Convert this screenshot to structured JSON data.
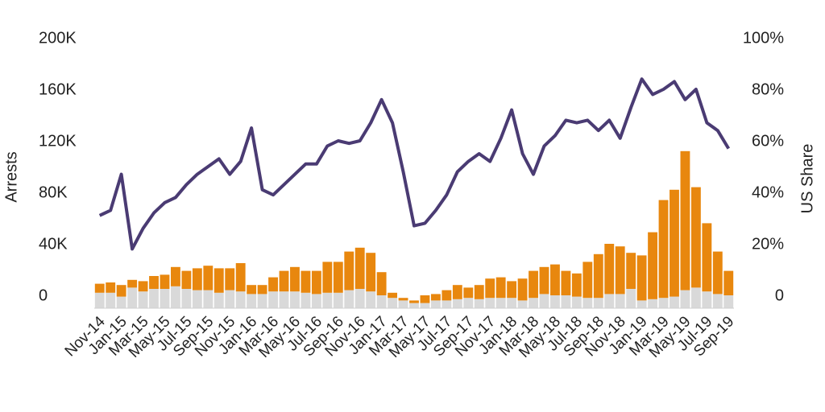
{
  "chart_data": {
    "type": "bar",
    "stacked": true,
    "y_label": "Arrests",
    "y2_label": "US Share",
    "categories": [
      "Nov-14",
      null,
      "Jan-15",
      null,
      "Mar-15",
      null,
      "May-15",
      null,
      "Jul-15",
      null,
      "Sep-15",
      null,
      "Nov-15",
      null,
      "Jan-16",
      null,
      "Mar-16",
      null,
      "May-16",
      null,
      "Jul-16",
      null,
      "Sep-16",
      null,
      "Nov-16",
      null,
      "Jan-17",
      null,
      "Mar-17",
      null,
      "May-17",
      null,
      "Jul-17",
      null,
      "Sep-17",
      null,
      "Nov-17",
      null,
      "Jan-18",
      null,
      "Mar-18",
      null,
      "May-18",
      null,
      "Jul-18",
      null,
      "Sep-18",
      null,
      "Nov-18",
      null,
      "Jan-19",
      null,
      "Mar-19",
      null,
      "May-19",
      null,
      "Jul-19",
      null,
      "Sep-19"
    ],
    "series": [
      {
        "type": "bar",
        "color": "#d9d9d9",
        "values": [
          12000,
          12000,
          9000,
          16000,
          13000,
          15000,
          15000,
          17000,
          15000,
          14000,
          14000,
          12000,
          14000,
          13000,
          11000,
          11000,
          13000,
          13000,
          13000,
          12000,
          11000,
          12000,
          12000,
          14000,
          15000,
          13000,
          10000,
          8000,
          6000,
          4000,
          4000,
          6000,
          6000,
          7000,
          8000,
          7000,
          8000,
          8000,
          8000,
          6000,
          8000,
          11000,
          10000,
          10000,
          9000,
          8000,
          8000,
          11000,
          11000,
          15000,
          6000,
          7000,
          8000,
          9000,
          14000,
          16000,
          13000,
          11000,
          10000
        ]
      },
      {
        "type": "bar",
        "color": "#e8870e",
        "values": [
          7000,
          8000,
          9000,
          6000,
          8000,
          10000,
          11000,
          15000,
          14000,
          17000,
          19000,
          19000,
          17000,
          22000,
          7000,
          7000,
          11000,
          16000,
          19000,
          17000,
          18000,
          24000,
          24000,
          30000,
          32000,
          30000,
          18000,
          4000,
          2000,
          2000,
          6000,
          5000,
          8000,
          11000,
          8000,
          11000,
          15000,
          16000,
          13000,
          17000,
          21000,
          21000,
          24000,
          19000,
          18000,
          28000,
          34000,
          39000,
          37000,
          28000,
          35000,
          52000,
          76000,
          83000,
          108000,
          78000,
          53000,
          33000,
          19000
        ]
      },
      {
        "type": "line",
        "axis": "y2",
        "color": "#4a3b73",
        "values": [
          36,
          38,
          52,
          23,
          31,
          37,
          41,
          43,
          48,
          52,
          55,
          58,
          52,
          57,
          70,
          46,
          44,
          48,
          52,
          56,
          56,
          63,
          65,
          64,
          65,
          72,
          81,
          72,
          53,
          32,
          33,
          38,
          44,
          53,
          57,
          60,
          57,
          66,
          77,
          60,
          52,
          63,
          67,
          73,
          72,
          73,
          69,
          73,
          66,
          78,
          89,
          83,
          85,
          88,
          81,
          85,
          72,
          69,
          62
        ]
      }
    ],
    "ylim": [
      0,
      200000
    ],
    "yticks": [
      0,
      {
        "value": 40000,
        "label": "40K"
      },
      {
        "value": 80000,
        "label": "80K"
      },
      {
        "value": 120000,
        "label": "120K"
      },
      {
        "value": 160000,
        "label": "160K"
      },
      {
        "value": 200000,
        "label": "200K"
      }
    ],
    "y2lim": [
      0,
      100
    ],
    "y2ticks": [
      0,
      {
        "value": 20,
        "label": "20%"
      },
      {
        "value": 40,
        "label": "40%"
      },
      {
        "value": 60,
        "label": "60%"
      },
      {
        "value": 80,
        "label": "80%"
      },
      {
        "value": 100,
        "label": "100%"
      }
    ],
    "grid": false
  }
}
